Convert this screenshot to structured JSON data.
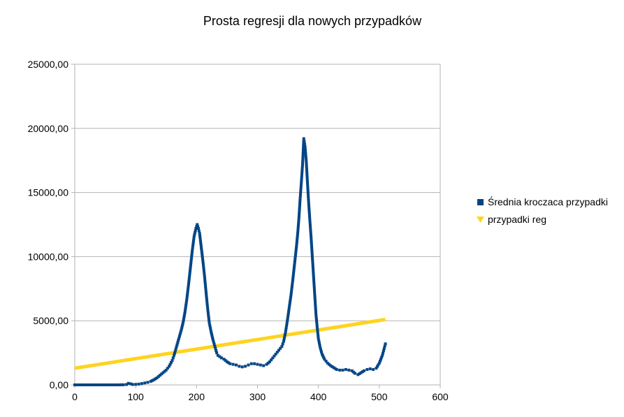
{
  "chart_data": {
    "type": "scatter",
    "title": "Prosta regresji dla nowych przypadków",
    "xlabel": "",
    "ylabel": "",
    "xlim": [
      0,
      600
    ],
    "ylim": [
      0,
      25000
    ],
    "x_ticks": [
      "0",
      "100",
      "200",
      "300",
      "400",
      "500",
      "600"
    ],
    "y_ticks": [
      "0,00",
      "5000,00",
      "10000,00",
      "15000,00",
      "20000,00",
      "25000,00"
    ],
    "grid": "horizontal",
    "legend_position": "right",
    "series": [
      {
        "name": "Średnia kroczaca przypadki",
        "marker": "square",
        "color": "#004586",
        "points": [
          [
            0,
            0
          ],
          [
            10,
            0
          ],
          [
            20,
            0
          ],
          [
            30,
            0
          ],
          [
            40,
            0
          ],
          [
            50,
            0
          ],
          [
            60,
            0
          ],
          [
            70,
            0
          ],
          [
            80,
            10
          ],
          [
            85,
            30
          ],
          [
            88,
            120
          ],
          [
            92,
            80
          ],
          [
            95,
            30
          ],
          [
            100,
            40
          ],
          [
            105,
            60
          ],
          [
            110,
            100
          ],
          [
            115,
            150
          ],
          [
            120,
            200
          ],
          [
            125,
            280
          ],
          [
            130,
            400
          ],
          [
            135,
            550
          ],
          [
            140,
            750
          ],
          [
            145,
            950
          ],
          [
            150,
            1150
          ],
          [
            155,
            1450
          ],
          [
            160,
            1900
          ],
          [
            163,
            2300
          ],
          [
            166,
            2800
          ],
          [
            169,
            3300
          ],
          [
            172,
            3800
          ],
          [
            175,
            4300
          ],
          [
            178,
            4900
          ],
          [
            181,
            5700
          ],
          [
            184,
            6700
          ],
          [
            187,
            7900
          ],
          [
            190,
            9200
          ],
          [
            193,
            10500
          ],
          [
            196,
            11600
          ],
          [
            199,
            12200
          ],
          [
            201,
            12500
          ],
          [
            203,
            12200
          ],
          [
            205,
            11800
          ],
          [
            207,
            11000
          ],
          [
            209,
            10200
          ],
          [
            211,
            9400
          ],
          [
            213,
            8500
          ],
          [
            215,
            7500
          ],
          [
            217,
            6500
          ],
          [
            219,
            5600
          ],
          [
            221,
            4800
          ],
          [
            224,
            4100
          ],
          [
            227,
            3500
          ],
          [
            230,
            3000
          ],
          [
            233,
            2500
          ],
          [
            235,
            2300
          ],
          [
            238,
            2200
          ],
          [
            241,
            2100
          ],
          [
            245,
            2000
          ],
          [
            250,
            1800
          ],
          [
            255,
            1650
          ],
          [
            260,
            1600
          ],
          [
            265,
            1550
          ],
          [
            270,
            1450
          ],
          [
            275,
            1400
          ],
          [
            280,
            1450
          ],
          [
            285,
            1550
          ],
          [
            290,
            1650
          ],
          [
            295,
            1650
          ],
          [
            300,
            1600
          ],
          [
            305,
            1550
          ],
          [
            310,
            1500
          ],
          [
            315,
            1600
          ],
          [
            320,
            1800
          ],
          [
            325,
            2100
          ],
          [
            330,
            2400
          ],
          [
            335,
            2700
          ],
          [
            340,
            3000
          ],
          [
            343,
            3400
          ],
          [
            346,
            4100
          ],
          [
            349,
            5000
          ],
          [
            352,
            6000
          ],
          [
            355,
            7000
          ],
          [
            358,
            8200
          ],
          [
            361,
            9500
          ],
          [
            364,
            10800
          ],
          [
            366,
            11800
          ],
          [
            368,
            13000
          ],
          [
            370,
            14500
          ],
          [
            372,
            15800
          ],
          [
            374,
            17200
          ],
          [
            376,
            19200
          ],
          [
            378,
            18600
          ],
          [
            380,
            17500
          ],
          [
            382,
            15800
          ],
          [
            384,
            14200
          ],
          [
            386,
            12800
          ],
          [
            388,
            11500
          ],
          [
            390,
            10000
          ],
          [
            392,
            8500
          ],
          [
            394,
            7000
          ],
          [
            396,
            5500
          ],
          [
            398,
            4500
          ],
          [
            400,
            3600
          ],
          [
            403,
            2900
          ],
          [
            406,
            2400
          ],
          [
            410,
            2000
          ],
          [
            415,
            1700
          ],
          [
            420,
            1500
          ],
          [
            425,
            1350
          ],
          [
            430,
            1200
          ],
          [
            435,
            1150
          ],
          [
            440,
            1150
          ],
          [
            445,
            1200
          ],
          [
            450,
            1150
          ],
          [
            455,
            1100
          ],
          [
            460,
            900
          ],
          [
            465,
            800
          ],
          [
            470,
            950
          ],
          [
            475,
            1100
          ],
          [
            480,
            1200
          ],
          [
            485,
            1250
          ],
          [
            490,
            1200
          ],
          [
            495,
            1300
          ],
          [
            500,
            1700
          ],
          [
            505,
            2300
          ],
          [
            510,
            3200
          ]
        ]
      },
      {
        "name": "przypadki reg",
        "marker": "triangle",
        "color": "#ffd320",
        "line": {
          "x": [
            0,
            510
          ],
          "y": [
            1300,
            5100
          ]
        }
      }
    ]
  }
}
